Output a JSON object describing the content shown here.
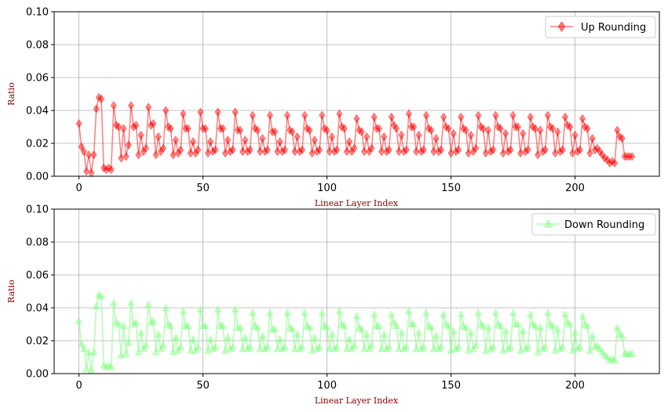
{
  "chart_data": [
    {
      "type": "line",
      "xlabel": "Linear Layer Index",
      "ylabel": "Ratio",
      "xlim": [
        -10,
        234
      ],
      "ylim": [
        0,
        0.1
      ],
      "xticks": [
        0,
        50,
        100,
        150,
        200
      ],
      "yticks": [
        0.0,
        0.02,
        0.04,
        0.06,
        0.08,
        0.1
      ],
      "ytick_labels": [
        "0.00",
        "0.02",
        "0.04",
        "0.06",
        "0.08",
        "0.10"
      ],
      "grid": true,
      "legend_position": "top-right",
      "series": [
        {
          "name": "Up Rounding",
          "color": "#ff0000",
          "marker": "diamond",
          "values": [
            0.032,
            0.018,
            0.015,
            0.003,
            0.013,
            0.002,
            0.013,
            0.041,
            0.048,
            0.047,
            0.005,
            0.004,
            0.005,
            0.004,
            0.043,
            0.031,
            0.03,
            0.011,
            0.029,
            0.012,
            0.019,
            0.043,
            0.03,
            0.031,
            0.013,
            0.025,
            0.015,
            0.017,
            0.042,
            0.031,
            0.032,
            0.013,
            0.024,
            0.015,
            0.017,
            0.04,
            0.03,
            0.029,
            0.013,
            0.022,
            0.014,
            0.016,
            0.038,
            0.029,
            0.029,
            0.014,
            0.021,
            0.014,
            0.016,
            0.039,
            0.029,
            0.029,
            0.014,
            0.021,
            0.015,
            0.016,
            0.039,
            0.029,
            0.029,
            0.014,
            0.022,
            0.015,
            0.016,
            0.039,
            0.028,
            0.028,
            0.015,
            0.022,
            0.015,
            0.016,
            0.037,
            0.029,
            0.028,
            0.015,
            0.023,
            0.015,
            0.016,
            0.037,
            0.027,
            0.027,
            0.015,
            0.021,
            0.015,
            0.016,
            0.037,
            0.028,
            0.027,
            0.015,
            0.024,
            0.015,
            0.016,
            0.037,
            0.029,
            0.028,
            0.014,
            0.022,
            0.015,
            0.016,
            0.037,
            0.029,
            0.028,
            0.015,
            0.024,
            0.015,
            0.016,
            0.038,
            0.03,
            0.029,
            0.015,
            0.021,
            0.015,
            0.017,
            0.035,
            0.028,
            0.027,
            0.015,
            0.024,
            0.015,
            0.017,
            0.036,
            0.029,
            0.029,
            0.015,
            0.024,
            0.015,
            0.016,
            0.036,
            0.031,
            0.029,
            0.015,
            0.025,
            0.015,
            0.016,
            0.038,
            0.03,
            0.03,
            0.015,
            0.025,
            0.015,
            0.016,
            0.037,
            0.029,
            0.028,
            0.015,
            0.023,
            0.015,
            0.016,
            0.036,
            0.03,
            0.029,
            0.014,
            0.026,
            0.015,
            0.016,
            0.036,
            0.029,
            0.028,
            0.014,
            0.025,
            0.015,
            0.017,
            0.037,
            0.03,
            0.029,
            0.014,
            0.028,
            0.015,
            0.016,
            0.037,
            0.03,
            0.029,
            0.014,
            0.026,
            0.015,
            0.016,
            0.037,
            0.03,
            0.03,
            0.014,
            0.026,
            0.015,
            0.016,
            0.036,
            0.03,
            0.029,
            0.013,
            0.028,
            0.015,
            0.016,
            0.037,
            0.03,
            0.029,
            0.014,
            0.027,
            0.015,
            0.016,
            0.036,
            0.031,
            0.03,
            0.014,
            0.025,
            0.015,
            0.016,
            0.035,
            0.03,
            0.029,
            0.014,
            0.023,
            0.016,
            0.017,
            0.015,
            0.013,
            0.011,
            0.01,
            0.008,
            0.009,
            0.008,
            0.028,
            0.024,
            0.023,
            0.012,
            0.012,
            0.012,
            0.012
          ]
        },
        {
          "name": "Down Rounding",
          "color": "#7fff7f",
          "marker": "triangle",
          "values": [
            0.032,
            0.018,
            0.015,
            0.003,
            0.013,
            0.002,
            0.013,
            0.041,
            0.048,
            0.047,
            0.005,
            0.004,
            0.005,
            0.004,
            0.043,
            0.031,
            0.03,
            0.011,
            0.029,
            0.012,
            0.019,
            0.043,
            0.03,
            0.031,
            0.013,
            0.025,
            0.015,
            0.017,
            0.042,
            0.031,
            0.032,
            0.013,
            0.024,
            0.015,
            0.017,
            0.04,
            0.03,
            0.029,
            0.013,
            0.022,
            0.014,
            0.016,
            0.038,
            0.029,
            0.029,
            0.014,
            0.021,
            0.014,
            0.016,
            0.039,
            0.029,
            0.029,
            0.014,
            0.021,
            0.015,
            0.016,
            0.039,
            0.029,
            0.029,
            0.014,
            0.022,
            0.015,
            0.016,
            0.039,
            0.028,
            0.028,
            0.015,
            0.022,
            0.015,
            0.016,
            0.037,
            0.029,
            0.028,
            0.015,
            0.023,
            0.015,
            0.016,
            0.037,
            0.027,
            0.027,
            0.015,
            0.021,
            0.015,
            0.016,
            0.037,
            0.028,
            0.027,
            0.015,
            0.024,
            0.015,
            0.016,
            0.037,
            0.029,
            0.028,
            0.014,
            0.022,
            0.015,
            0.016,
            0.037,
            0.029,
            0.028,
            0.015,
            0.024,
            0.015,
            0.016,
            0.038,
            0.03,
            0.029,
            0.015,
            0.021,
            0.015,
            0.017,
            0.035,
            0.028,
            0.027,
            0.015,
            0.024,
            0.015,
            0.017,
            0.036,
            0.029,
            0.029,
            0.015,
            0.024,
            0.015,
            0.016,
            0.036,
            0.031,
            0.029,
            0.015,
            0.025,
            0.015,
            0.016,
            0.038,
            0.03,
            0.03,
            0.015,
            0.025,
            0.015,
            0.016,
            0.037,
            0.029,
            0.028,
            0.015,
            0.023,
            0.015,
            0.016,
            0.036,
            0.03,
            0.029,
            0.014,
            0.026,
            0.015,
            0.016,
            0.036,
            0.029,
            0.028,
            0.014,
            0.025,
            0.015,
            0.017,
            0.037,
            0.03,
            0.029,
            0.014,
            0.028,
            0.015,
            0.016,
            0.037,
            0.03,
            0.029,
            0.014,
            0.026,
            0.015,
            0.016,
            0.037,
            0.03,
            0.03,
            0.014,
            0.026,
            0.015,
            0.016,
            0.036,
            0.03,
            0.029,
            0.013,
            0.028,
            0.015,
            0.016,
            0.037,
            0.03,
            0.029,
            0.014,
            0.027,
            0.015,
            0.016,
            0.036,
            0.031,
            0.03,
            0.014,
            0.025,
            0.015,
            0.016,
            0.035,
            0.03,
            0.029,
            0.014,
            0.023,
            0.016,
            0.017,
            0.015,
            0.013,
            0.011,
            0.01,
            0.008,
            0.009,
            0.008,
            0.028,
            0.024,
            0.023,
            0.012,
            0.012,
            0.012,
            0.012
          ]
        }
      ]
    }
  ]
}
